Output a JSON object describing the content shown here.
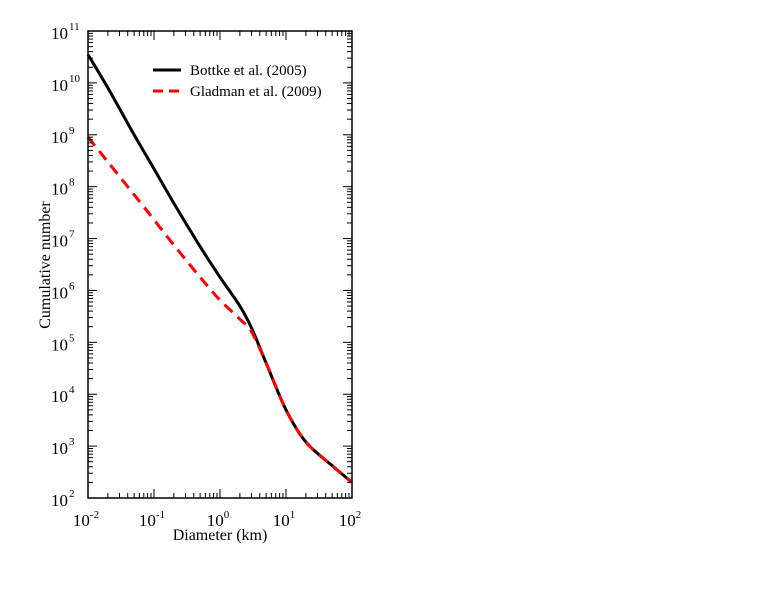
{
  "chart_data": {
    "type": "line",
    "title": "",
    "xlabel": "Diameter (km)",
    "ylabel": "Cumulative number",
    "x_scale": "log",
    "y_scale": "log",
    "xlim": [
      0.01,
      100
    ],
    "ylim": [
      100,
      100000000000
    ],
    "x_ticks": [
      {
        "base": "10",
        "exp": "-2",
        "value": 0.01
      },
      {
        "base": "10",
        "exp": "-1",
        "value": 0.1
      },
      {
        "base": "10",
        "exp": "0",
        "value": 1
      },
      {
        "base": "10",
        "exp": "1",
        "value": 10
      },
      {
        "base": "10",
        "exp": "2",
        "value": 100
      }
    ],
    "y_ticks": [
      {
        "base": "10",
        "exp": "2",
        "value": 100
      },
      {
        "base": "10",
        "exp": "3",
        "value": 1000
      },
      {
        "base": "10",
        "exp": "4",
        "value": 10000
      },
      {
        "base": "10",
        "exp": "5",
        "value": 100000
      },
      {
        "base": "10",
        "exp": "6",
        "value": 1000000
      },
      {
        "base": "10",
        "exp": "7",
        "value": 10000000
      },
      {
        "base": "10",
        "exp": "8",
        "value": 100000000
      },
      {
        "base": "10",
        "exp": "9",
        "value": 1000000000
      },
      {
        "base": "10",
        "exp": "10",
        "value": 10000000000
      },
      {
        "base": "10",
        "exp": "11",
        "value": 100000000000
      }
    ],
    "grid": false,
    "legend_position": "top-right",
    "series": [
      {
        "name": "Bottke et al. (2005)",
        "color": "#000000",
        "style": "solid",
        "x": [
          0.01,
          0.02,
          0.05,
          0.1,
          0.2,
          0.5,
          1,
          2,
          3,
          5,
          10,
          20,
          50,
          100
        ],
        "y": [
          35000000000.0,
          8000000000.0,
          1000000000.0,
          220000000.0,
          48000000.0,
          7000000.0,
          1800000.0,
          500000.0,
          190000.0,
          40000.0,
          5000.0,
          1200.0,
          420.0,
          200.0
        ]
      },
      {
        "name": "Gladman et al. (2009)",
        "color": "#ff0000",
        "style": "dashed",
        "x": [
          0.01,
          0.02,
          0.05,
          0.1,
          0.2,
          0.5,
          1,
          2,
          3,
          5,
          10,
          20,
          50,
          100
        ],
        "y": [
          900000000.0,
          300000000.0,
          70000000.0,
          23000000.0,
          7500000.0,
          1800000.0,
          650000.0,
          280000.0,
          160000.0,
          40000.0,
          5000.0,
          1200.0,
          420.0,
          200.0
        ]
      }
    ]
  }
}
